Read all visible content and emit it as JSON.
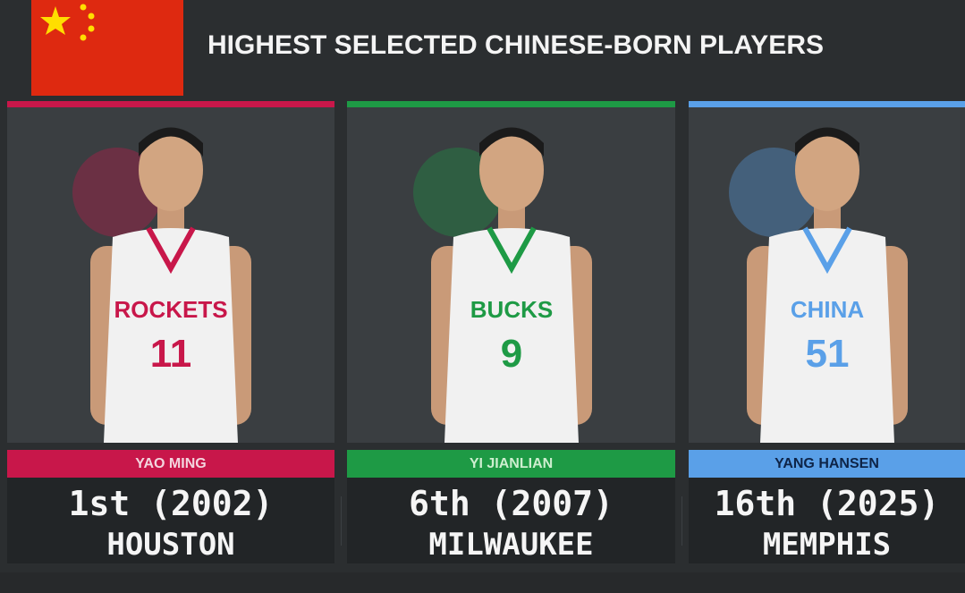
{
  "header": {
    "title": "HIGHEST SELECTED CHINESE-BORN PLAYERS",
    "flag": "china-flag"
  },
  "colors": {
    "background": "#2b2e30",
    "houston": "#c8174a",
    "milwaukee": "#1e9a45",
    "memphis": "#5aa0e8"
  },
  "players": [
    {
      "name": "YAO MING",
      "pick": "1st (2002)",
      "team": "HOUSTON",
      "jersey_text": "ROCKETS",
      "jersey_number": "11",
      "color": "#c8174a",
      "name_color": "#f3d5de",
      "logo": "rockets-logo"
    },
    {
      "name": "YI JIANLIAN",
      "pick": "6th (2007)",
      "team": "MILWAUKEE",
      "jersey_text": "BUCKS",
      "jersey_number": "9",
      "color": "#1e9a45",
      "name_color": "#cdeecf",
      "logo": "bucks-logo"
    },
    {
      "name": "YANG HANSEN",
      "pick": "16th (2025)",
      "team": "MEMPHIS",
      "jersey_text": "CHINA",
      "jersey_number": "51",
      "color": "#5aa0e8",
      "name_color": "#0e2447",
      "logo": "grizzlies-logo"
    }
  ]
}
